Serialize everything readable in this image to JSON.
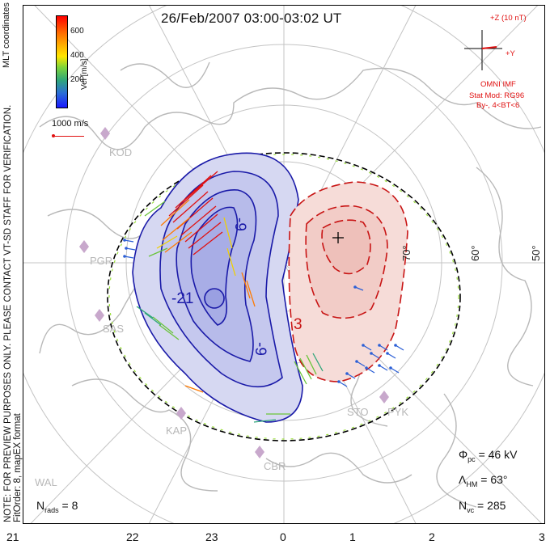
{
  "title": "26/Feb/2007 03:00-03:02 UT",
  "side_note_1": "NOTE: FOR PREVIEW PURPOSES ONLY. PLEASE CONTACT VT-SD STAFF FOR VERIFICATION.",
  "side_note_2": "FitOrder: 8, mapEX format",
  "coord_label": "MLT coordinates",
  "colorbar": {
    "label": "Vel [m/s]",
    "ticks": [
      "600",
      "400",
      "200"
    ]
  },
  "scale_vector_label": "1000 m/s",
  "imf": {
    "z_label": "+Z (10 nT)",
    "y_label": "+Y",
    "source": "OMNI IMF",
    "model": "Stat Mod: RG96",
    "condition": "By-, 4<BT<6"
  },
  "stats": {
    "phi_pc_value": "= 46 kV",
    "lambda_hm_value": "= 63°",
    "n_vc_value": "= 285",
    "n_rads_value": "= 8"
  },
  "mlt_ticks": [
    "21",
    "22",
    "23",
    "0",
    "1",
    "2",
    "3"
  ],
  "latitude_labels": [
    "70°",
    "60°",
    "50°"
  ],
  "stations": [
    "KOD",
    "PGR",
    "SAS",
    "KAP",
    "CBR",
    "WAL",
    "STO",
    "PYK"
  ],
  "contour_labels": [
    "-9",
    "-21",
    "-9",
    "3"
  ],
  "colors": {
    "negative_contour": "#1a1aa8",
    "positive_contour": "#c81414",
    "negative_fill": "#c9cbee",
    "positive_fill": "#f5d5d2",
    "hmb_boundary": "#000000",
    "landmass": "#b8b8b8",
    "grid": "#bdbdbd"
  }
}
